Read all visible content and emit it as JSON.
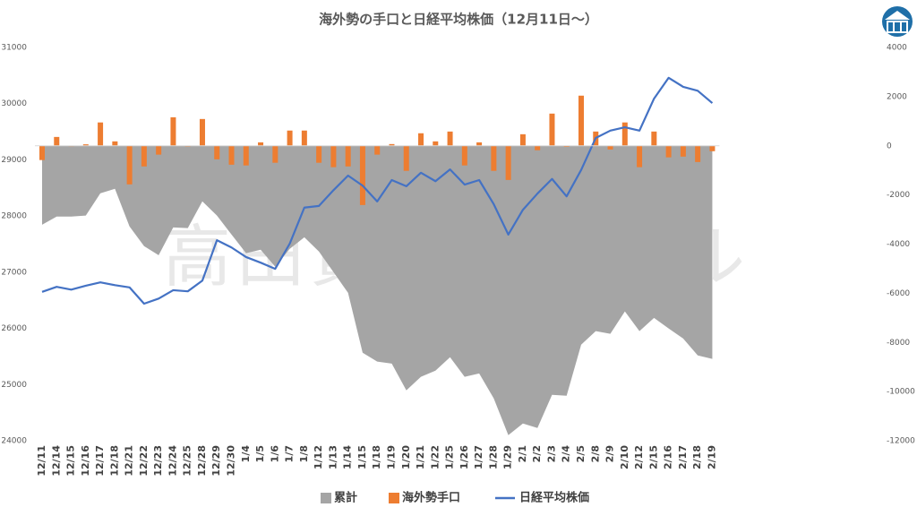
{
  "chart_data": {
    "type": "combo",
    "title": "海外勢の手口と日経平均株価（12月11日～）",
    "watermark": "高田資産コンサル",
    "categories": [
      "12/11",
      "12/14",
      "12/15",
      "12/16",
      "12/17",
      "12/18",
      "12/21",
      "12/22",
      "12/23",
      "12/24",
      "12/25",
      "12/28",
      "12/29",
      "12/30",
      "1/4",
      "1/5",
      "1/6",
      "1/7",
      "1/8",
      "1/12",
      "1/13",
      "1/14",
      "1/15",
      "1/18",
      "1/19",
      "1/20",
      "1/21",
      "1/22",
      "1/25",
      "1/26",
      "1/27",
      "1/28",
      "1/29",
      "2/1",
      "2/2",
      "2/3",
      "2/4",
      "2/5",
      "2/8",
      "2/9",
      "2/10",
      "2/12",
      "2/15",
      "2/16",
      "2/17",
      "2/18",
      "2/19"
    ],
    "series": [
      {
        "name": "累計",
        "type": "area",
        "axis": "y2",
        "color": "#a5a5a5",
        "values": [
          -3210,
          -2880,
          -2880,
          -2840,
          -1930,
          -1750,
          -3280,
          -4080,
          -4450,
          -3320,
          -3350,
          -2260,
          -2840,
          -3610,
          -4370,
          -4230,
          -4920,
          -4190,
          -3720,
          -4300,
          -5140,
          -5980,
          -8420,
          -8780,
          -8860,
          -9950,
          -9400,
          -9150,
          -8600,
          -9400,
          -9260,
          -10280,
          -11770,
          -11300,
          -11480,
          -10130,
          -10170,
          -8090,
          -7540,
          -7650,
          -6740,
          -7540,
          -7000,
          -7430,
          -7840,
          -8530,
          -8670
        ]
      },
      {
        "name": "海外勢手口",
        "type": "bar",
        "axis": "y2",
        "color": "#ed7d31",
        "values": [
          -580,
          360,
          -20,
          60,
          950,
          180,
          -1570,
          -840,
          -360,
          1160,
          -30,
          1090,
          -550,
          -770,
          -800,
          140,
          -690,
          620,
          620,
          -690,
          -870,
          -840,
          -2410,
          -360,
          70,
          -1020,
          510,
          180,
          580,
          -800,
          140,
          -1020,
          -1390,
          470,
          -180,
          1310,
          -40,
          2040,
          580,
          -150,
          950,
          -870,
          580,
          -470,
          -440,
          -660,
          -220
        ]
      },
      {
        "name": "日経平均株価",
        "type": "line",
        "axis": "y",
        "color": "#4472c4",
        "values": [
          26650,
          26740,
          26690,
          26760,
          26820,
          26770,
          26730,
          26440,
          26530,
          26680,
          26660,
          26850,
          27570,
          27440,
          27270,
          27170,
          27060,
          27510,
          28150,
          28180,
          28460,
          28720,
          28540,
          28260,
          28640,
          28530,
          28770,
          28620,
          28830,
          28560,
          28640,
          28210,
          27670,
          28110,
          28400,
          28660,
          28350,
          28820,
          29390,
          29520,
          29580,
          29520,
          30090,
          30460,
          30300,
          30230,
          30010
        ]
      }
    ],
    "ylim": [
      24000,
      31000
    ],
    "yticks": [
      24000,
      25000,
      26000,
      27000,
      28000,
      29000,
      30000,
      31000
    ],
    "y2lim": [
      -12000,
      4000
    ],
    "y2ticks": [
      -12000,
      -10000,
      -8000,
      -6000,
      -4000,
      -2000,
      0,
      2000,
      4000
    ],
    "legend": "bottom"
  }
}
